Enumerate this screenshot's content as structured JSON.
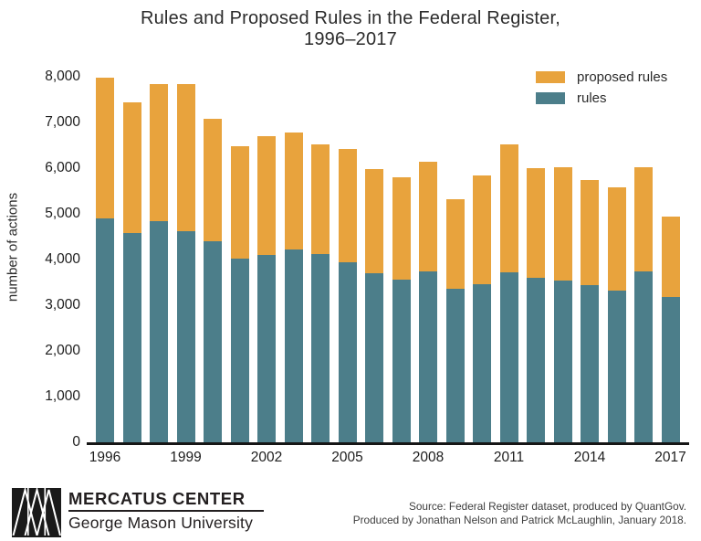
{
  "title": {
    "line1": "Rules and Proposed Rules in the Federal Register,",
    "line2": "1996–2017"
  },
  "chart_data": {
    "type": "bar",
    "stacked": true,
    "title": "Rules and Proposed Rules in the Federal Register, 1996–2017",
    "xlabel": "",
    "ylabel": "number of actions",
    "ylim": [
      0,
      8000
    ],
    "ytick_step": 1000,
    "ytick_labels": [
      "0",
      "1,000",
      "2,000",
      "3,000",
      "4,000",
      "5,000",
      "6,000",
      "7,000",
      "8,000"
    ],
    "xtick_years": [
      1996,
      1999,
      2002,
      2005,
      2008,
      2011,
      2014,
      2017
    ],
    "grid": false,
    "legend_position": "top-right",
    "categories": [
      1996,
      1997,
      1998,
      1999,
      2000,
      2001,
      2002,
      2003,
      2004,
      2005,
      2006,
      2007,
      2008,
      2009,
      2010,
      2011,
      2012,
      2013,
      2014,
      2015,
      2016,
      2017
    ],
    "series": [
      {
        "name": "proposed rules",
        "color": "#E8A33D",
        "values": [
          3080,
          2870,
          2990,
          3220,
          2680,
          2450,
          2590,
          2550,
          2390,
          2470,
          2280,
          2250,
          2400,
          1960,
          2380,
          2810,
          2410,
          2490,
          2300,
          2250,
          2280,
          1770
        ]
      },
      {
        "name": "rules",
        "color": "#4C7E8A",
        "values": [
          4900,
          4580,
          4850,
          4620,
          4400,
          4030,
          4110,
          4230,
          4130,
          3950,
          3710,
          3560,
          3740,
          3370,
          3460,
          3720,
          3600,
          3540,
          3440,
          3330,
          3740,
          3180
        ]
      }
    ]
  },
  "footer": {
    "brand_line1": "MERCATUS CENTER",
    "brand_line2": "George Mason University",
    "logo_icon": "mercatus-triangles-logo",
    "source_line1": "Source: Federal Register dataset, produced by QuantGov.",
    "source_line2": "Produced by Jonathan Nelson and Patrick McLaughlin, January 2018."
  }
}
